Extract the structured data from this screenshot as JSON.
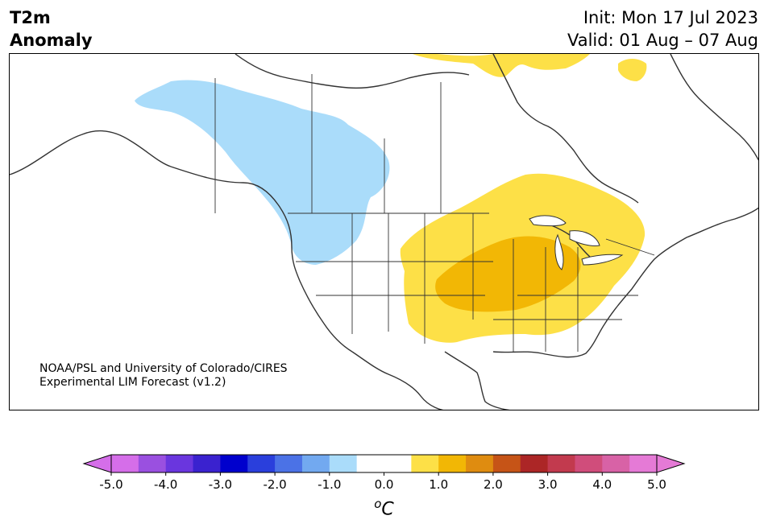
{
  "header": {
    "title_line1": "T2m",
    "title_line2": "Anomaly",
    "init": "Init: Mon 17 Jul 2023",
    "valid": "Valid: 01 Aug – 07 Aug"
  },
  "credit": {
    "line1": "NOAA/PSL and University of Colorado/CIRES",
    "line2": "Experimental LIM Forecast (v1.2)"
  },
  "colorbar": {
    "unit_base": "C",
    "unit_sup": "o",
    "ticks": [
      "-5.0",
      "-4.0",
      "-3.0",
      "-2.0",
      "-1.0",
      "0.0",
      "1.0",
      "2.0",
      "3.0",
      "4.0",
      "5.0"
    ],
    "colors": [
      "#d56ee9",
      "#9a50e0",
      "#6a36de",
      "#3a22cf",
      "#0000cd",
      "#2a3fdc",
      "#4b72e6",
      "#72a9f0",
      "#aadcfa",
      "#ffffff",
      "#ffffff",
      "#fde047",
      "#f2b705",
      "#df8c10",
      "#c65417",
      "#ac2626",
      "#c23a4e",
      "#d04d7b",
      "#d862a6",
      "#e57ad6"
    ],
    "under_color": "#d56ee9",
    "over_color": "#e57ad6"
  },
  "map": {
    "anomaly_fills": {
      "cold_1": "#aadcfa",
      "warm_1": "#fde047",
      "warm_2": "#f2b705"
    }
  }
}
